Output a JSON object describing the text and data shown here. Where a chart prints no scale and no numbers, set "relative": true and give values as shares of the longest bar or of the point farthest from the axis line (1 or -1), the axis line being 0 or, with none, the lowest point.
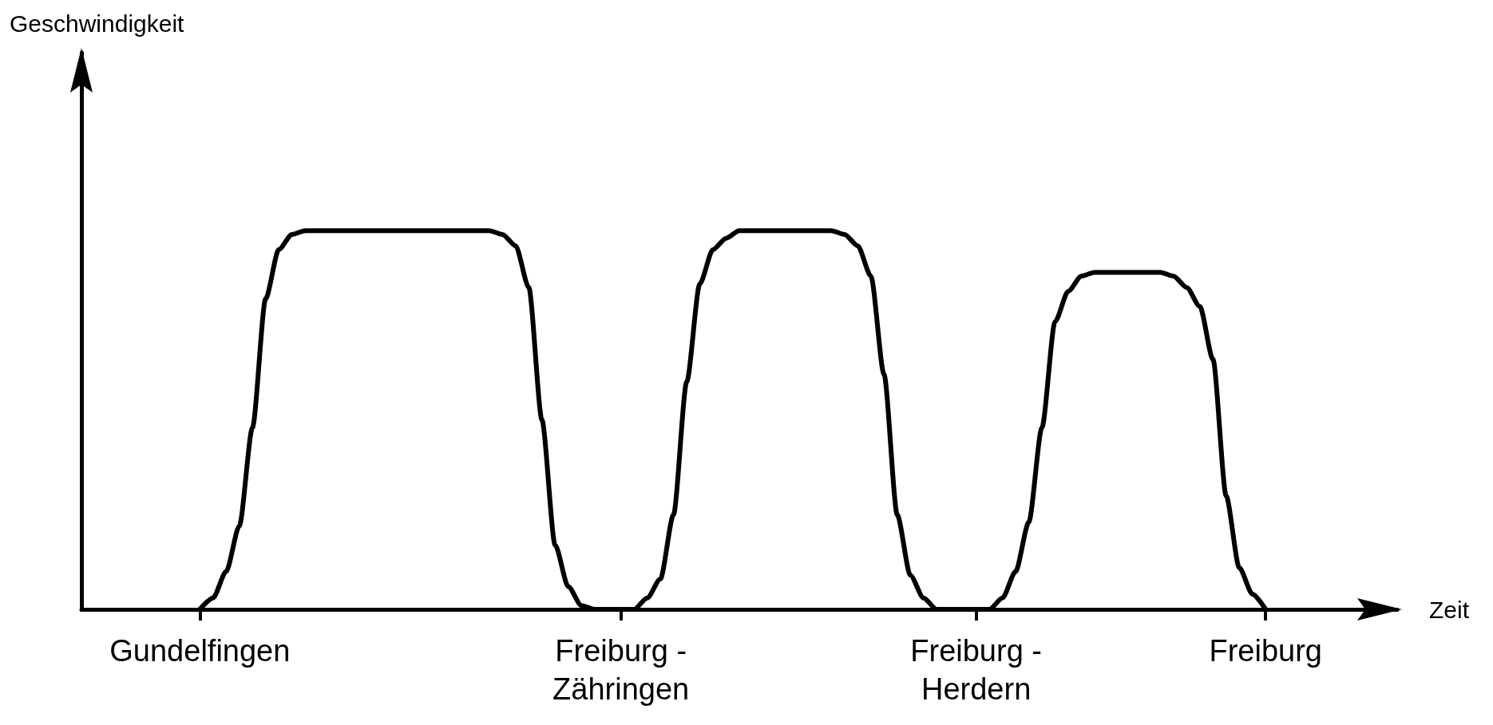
{
  "chart_data": {
    "type": "line",
    "relative": true,
    "xlabel": "Zeit",
    "annotations": [
      "Geschwindigkeit"
    ],
    "categories": [
      null,
      null,
      null,
      null,
      null,
      null,
      null,
      null,
      null,
      "Gundelfingen",
      null,
      null,
      null,
      null,
      null,
      null,
      null,
      null,
      null,
      null,
      null,
      null,
      null,
      null,
      null,
      null,
      null,
      null,
      null,
      null,
      null,
      null,
      null,
      null,
      null,
      null,
      null,
      null,
      null,
      null,
      null,
      "Freiburg -\nZähringen",
      null,
      null,
      null,
      null,
      null,
      null,
      null,
      null,
      null,
      null,
      null,
      null,
      null,
      null,
      null,
      null,
      null,
      null,
      null,
      null,
      null,
      null,
      null,
      null,
      null,
      null,
      "Freiburg -\nHerdern",
      null,
      null,
      null,
      null,
      null,
      null,
      null,
      null,
      null,
      null,
      null,
      null,
      null,
      null,
      null,
      null,
      null,
      null,
      null,
      null,
      null,
      "Freiburg",
      null,
      null,
      null,
      null,
      null,
      null,
      null,
      null,
      null,
      null
    ],
    "series": [
      {
        "color": "#000000",
        "values": [
          null,
          null,
          null,
          null,
          null,
          null,
          null,
          null,
          null,
          0,
          0.03,
          0.1,
          0.22,
          0.48,
          0.82,
          0.95,
          0.99,
          1,
          1,
          1,
          1,
          1,
          1,
          1,
          1,
          1,
          1,
          1,
          1,
          1,
          1,
          1,
          0.99,
          0.96,
          0.85,
          0.5,
          0.17,
          0.06,
          0.01,
          0,
          0,
          0,
          0,
          0.03,
          0.08,
          0.25,
          0.6,
          0.86,
          0.95,
          0.98,
          1,
          1,
          1,
          1,
          1,
          1,
          1,
          1,
          0.99,
          0.96,
          0.88,
          0.62,
          0.25,
          0.09,
          0.03,
          0,
          0,
          0,
          0,
          0,
          0.03,
          0.1,
          0.23,
          0.48,
          0.76,
          0.84,
          0.88,
          0.89,
          0.89,
          0.89,
          0.89,
          0.89,
          0.89,
          0.88,
          0.85,
          0.8,
          0.66,
          0.3,
          0.11,
          0.04,
          0,
          null,
          null,
          null,
          null,
          null,
          null,
          null,
          null,
          null,
          null
        ]
      }
    ],
    "grid": false,
    "marker": "none",
    "line_style": "solid"
  }
}
